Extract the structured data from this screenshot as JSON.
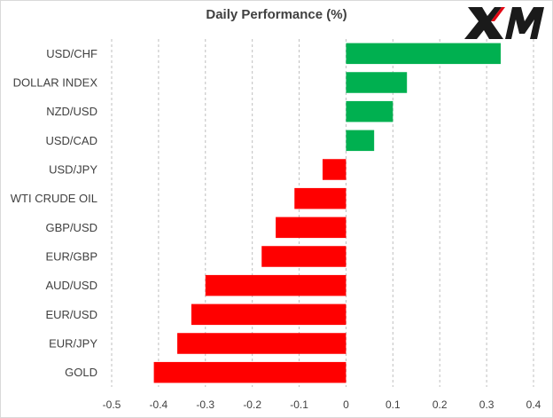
{
  "brand": {
    "logo_text": "XM",
    "logo_color": "#1a1a1a",
    "logo_accent": "#e30613"
  },
  "chart_data": {
    "type": "bar",
    "orientation": "horizontal",
    "title": "Daily Performance (%)",
    "categories": [
      "USD/CHF",
      "DOLLAR INDEX",
      "NZD/USD",
      "USD/CAD",
      "USD/JPY",
      "WTI CRUDE OIL",
      "GBP/USD",
      "EUR/GBP",
      "AUD/USD",
      "EUR/USD",
      "EUR/JPY",
      "GOLD"
    ],
    "values": [
      0.33,
      0.13,
      0.1,
      0.06,
      -0.05,
      -0.11,
      -0.15,
      -0.18,
      -0.3,
      -0.33,
      -0.36,
      -0.41
    ],
    "xlim": [
      -0.5,
      0.4
    ],
    "xticks": [
      -0.5,
      -0.4,
      -0.3,
      -0.2,
      -0.1,
      0,
      0.1,
      0.2,
      0.3,
      0.4
    ],
    "xtick_labels": [
      "-0.5",
      "-0.4",
      "-0.3",
      "-0.2",
      "-0.1",
      "0",
      "0.1",
      "0.2",
      "0.3",
      "0.4"
    ],
    "grid": "vertical dashed",
    "colors": {
      "positive": "#00b050",
      "negative": "#ff0000",
      "grid": "#bfbfbf",
      "text": "#404040"
    }
  }
}
